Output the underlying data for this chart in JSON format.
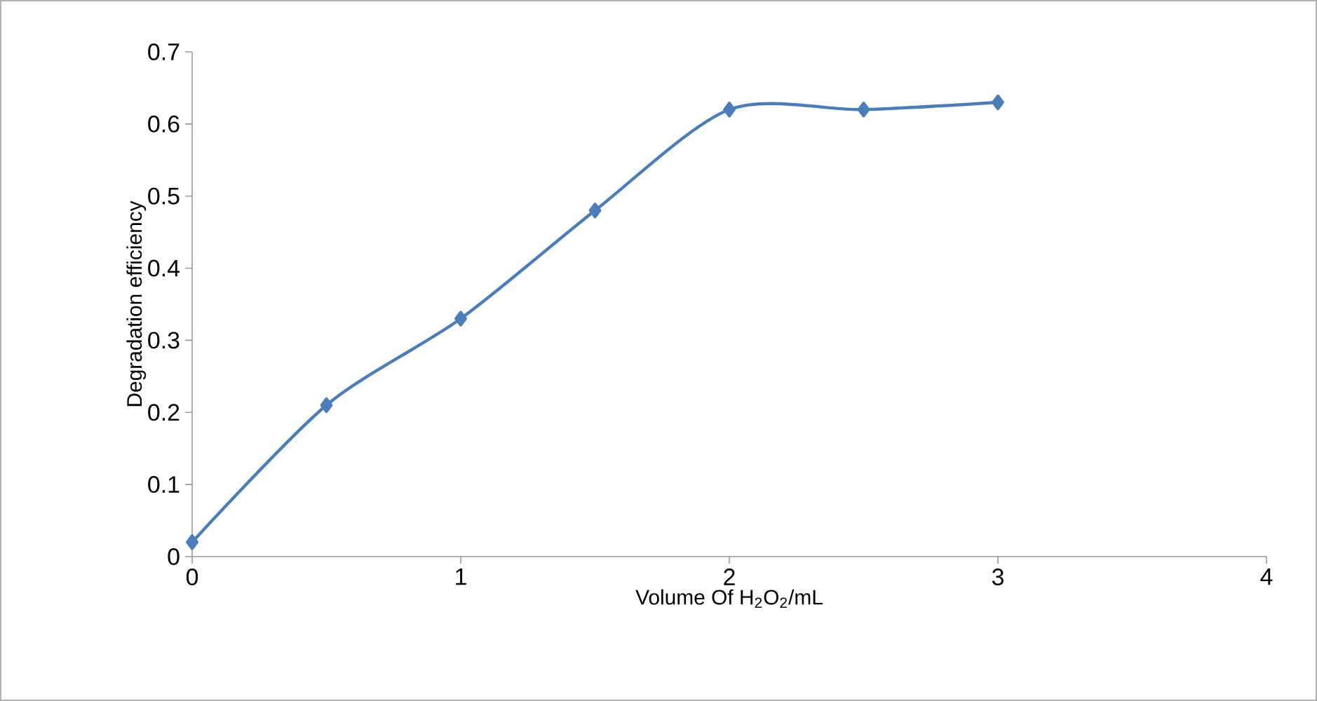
{
  "chart_data": {
    "type": "line",
    "xlabel": "Volume Of H$_{2}$O$_{2}$/mL",
    "ylabel": "Degradation efficiency",
    "x": [
      0,
      0.5,
      1,
      1.5,
      2,
      2.5,
      3
    ],
    "series": [
      {
        "color": "#4a7ebb",
        "values": [
          0.02,
          0.21,
          0.33,
          0.48,
          0.62,
          0.62,
          0.63
        ]
      }
    ],
    "xlim": [
      0,
      4
    ],
    "xticks": [
      0,
      1,
      2,
      3,
      4
    ],
    "ylim": [
      0,
      0.7
    ],
    "yticks": [
      0,
      0.1,
      0.2,
      0.3,
      0.4,
      0.5,
      0.6,
      0.7
    ],
    "grid": false,
    "marker": "diamond",
    "line_style": "solid"
  }
}
